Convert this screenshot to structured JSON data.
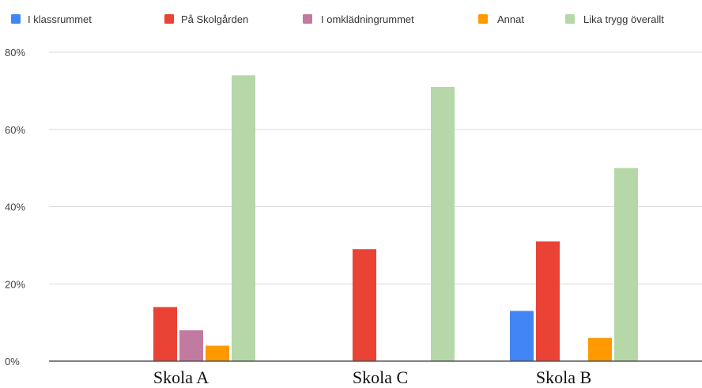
{
  "chart_data": {
    "type": "bar",
    "title": "",
    "xlabel": "",
    "ylabel": "",
    "categories": [
      "Skola A",
      "Skola C",
      "Skola B"
    ],
    "ylim": [
      0,
      80
    ],
    "yticks": [
      0,
      20,
      40,
      60,
      80
    ],
    "yticks_labels": [
      "0%",
      "20%",
      "40%",
      "60%",
      "80%"
    ],
    "grid": true,
    "legend_position": "top",
    "series": [
      {
        "name": "I klassrummet",
        "color": "#4285F4",
        "values": [
          0,
          0,
          13
        ]
      },
      {
        "name": "På Skolgården",
        "color": "#EA4335",
        "values": [
          14,
          29,
          31
        ]
      },
      {
        "name": "I omklädningrummet",
        "color": "#C27BA0",
        "values": [
          8,
          0,
          0
        ]
      },
      {
        "name": "Annat",
        "color": "#FF9900",
        "values": [
          4,
          0,
          6
        ]
      },
      {
        "name": "Lika trygg överallt",
        "color": "#B6D7A8",
        "values": [
          74,
          71,
          50
        ]
      }
    ]
  }
}
